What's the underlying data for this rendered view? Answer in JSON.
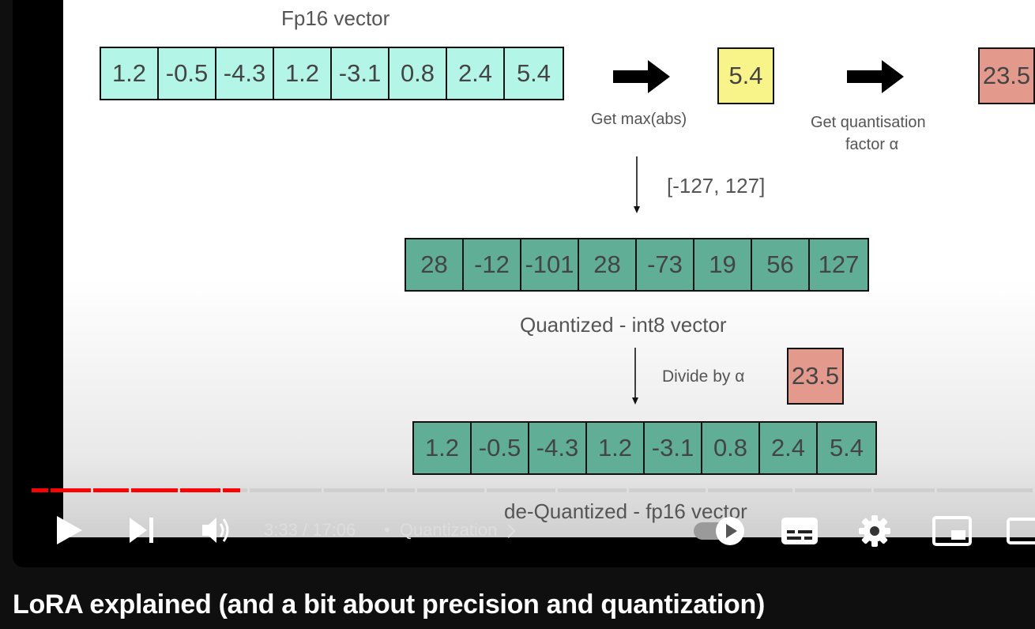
{
  "slide": {
    "fp16_title": "Fp16 vector",
    "fp16_values": [
      "1.2",
      "-0.5",
      "-4.3",
      "1.2",
      "-3.1",
      "0.8",
      "2.4",
      "5.4"
    ],
    "get_max_label": "Get max(abs)",
    "max_value": "5.4",
    "quant_factor_label_line1": "Get quantisation",
    "quant_factor_label_line2": "factor α",
    "quant_factor_value": "23.5",
    "range_label": "[-127, 127]",
    "int8_values": [
      "28",
      "-12",
      "-101",
      "28",
      "-73",
      "19",
      "56",
      "127"
    ],
    "int8_title": "Quantized - int8 vector",
    "divide_label": "Divide by α",
    "divide_value": "23.5",
    "dequant_values": [
      "1.2",
      "-0.5",
      "-4.3",
      "1.2",
      "-3.1",
      "0.8",
      "2.4",
      "5.4"
    ],
    "dequant_title": "de-Quantized - fp16 vector",
    "colors": {
      "cyan": "#b3f5e6",
      "green": "#5fae95",
      "yellow": "#f8f48a",
      "salmon": "#e39a8d"
    }
  },
  "player": {
    "time_current": "3:33",
    "time_separator": "/",
    "time_total": "17:06",
    "chapter_dot": "•",
    "chapter": "Quantization",
    "progress_fraction": 0.208,
    "colors": {
      "progress": "#ff0000",
      "buffered": "#cfcfcf"
    }
  },
  "video_title": "LoRA explained (and a bit about precision and quantization)"
}
